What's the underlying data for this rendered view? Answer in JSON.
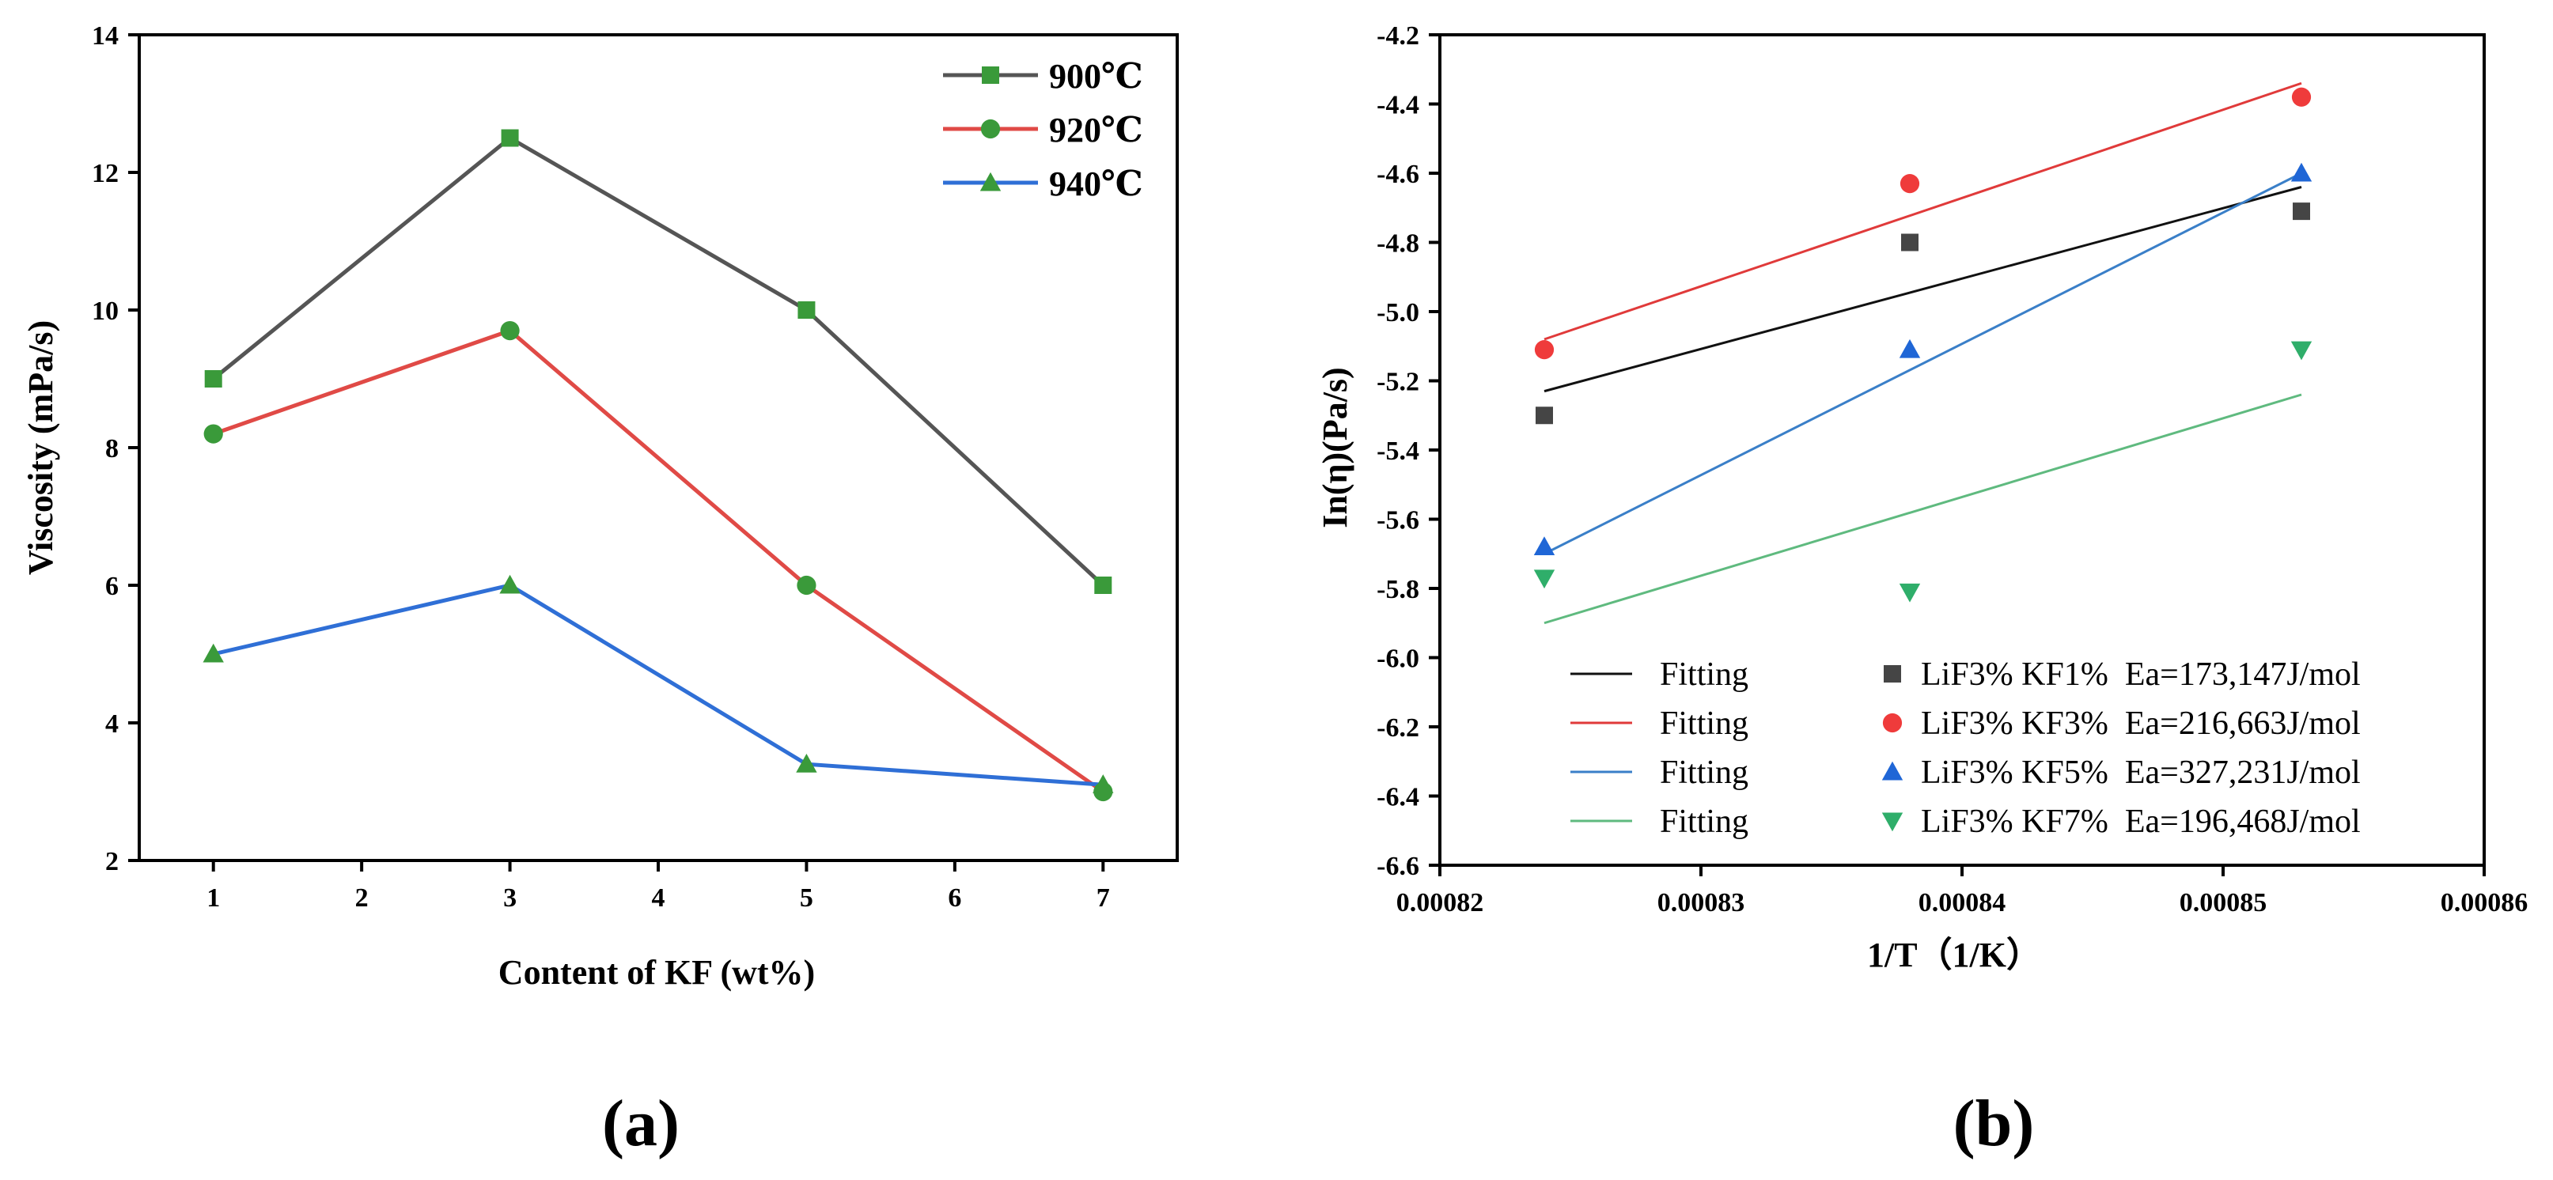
{
  "chart_data": [
    {
      "type": "line",
      "panel_label": "(a)",
      "xlabel": "Content of KF (wt%)",
      "ylabel": "Viscosity (mPa/s)",
      "xlim": [
        0.5,
        7.5
      ],
      "ylim": [
        2,
        14
      ],
      "xticks": [
        1,
        2,
        3,
        4,
        5,
        6,
        7
      ],
      "yticks": [
        2,
        4,
        6,
        8,
        10,
        12,
        14
      ],
      "x": [
        1,
        3,
        5,
        7
      ],
      "legend_position": "top-right",
      "grid": false,
      "series": [
        {
          "name": "900℃",
          "values": [
            9.0,
            12.5,
            10.0,
            6.0
          ],
          "color": "#555555",
          "marker": "square",
          "marker_color": "#3a9a3a"
        },
        {
          "name": "920℃",
          "values": [
            8.2,
            9.7,
            6.0,
            3.0
          ],
          "color": "#e04a46",
          "marker": "circle",
          "marker_color": "#3a9a3a"
        },
        {
          "name": "940℃",
          "values": [
            5.0,
            6.0,
            3.4,
            3.1
          ],
          "color": "#2f6fd6",
          "marker": "triangle-up",
          "marker_color": "#3a9a3a"
        }
      ]
    },
    {
      "type": "scatter",
      "panel_label": "(b)",
      "xlabel": "1/T（1/K）",
      "ylabel": "In(η)(Pa/s)",
      "xlim": [
        0.00082,
        0.00086
      ],
      "ylim": [
        -6.6,
        -4.2
      ],
      "xticks": [
        "0.00082",
        "0.00083",
        "0.00084",
        "0.00085",
        "0.00086"
      ],
      "yticks": [
        "-6.6",
        "-6.4",
        "-6.2",
        "-6.0",
        "-5.8",
        "-5.6",
        "-5.4",
        "-5.2",
        "-5.0",
        "-4.8",
        "-4.6",
        "-4.4",
        "-4.2"
      ],
      "x": [
        0.000824,
        0.000838,
        0.000853
      ],
      "legend_position": "bottom",
      "grid": false,
      "series": [
        {
          "name": "LiF3% KF1%  Ea=173,147J/mol",
          "values": [
            -5.3,
            -4.8,
            -4.71
          ],
          "color": "#454545",
          "marker": "square",
          "fit": {
            "label": "Fitting",
            "y": [
              -5.23,
              -4.64
            ],
            "color": "#111111"
          }
        },
        {
          "name": "LiF3% KF3%  Ea=216,663J/mol",
          "values": [
            -5.11,
            -4.63,
            -4.38
          ],
          "color": "#ef3b3b",
          "marker": "circle",
          "fit": {
            "label": "Fitting",
            "y": [
              -5.08,
              -4.34
            ],
            "color": "#e03a3a"
          }
        },
        {
          "name": "LiF3% KF5%  Ea=327,231J/mol",
          "values": [
            -5.68,
            -5.11,
            -4.6
          ],
          "color": "#1f66d6",
          "marker": "triangle-up",
          "fit": {
            "label": "Fitting",
            "y": [
              -5.7,
              -4.6
            ],
            "color": "#3a7fc8"
          }
        },
        {
          "name": "LiF3% KF7%  Ea=196,468J/mol",
          "values": [
            -5.77,
            -5.81,
            -5.11
          ],
          "color": "#2fae6a",
          "marker": "triangle-down",
          "fit": {
            "label": "Fitting",
            "y": [
              -5.9,
              -5.24
            ],
            "color": "#5fba7f"
          }
        }
      ]
    }
  ]
}
